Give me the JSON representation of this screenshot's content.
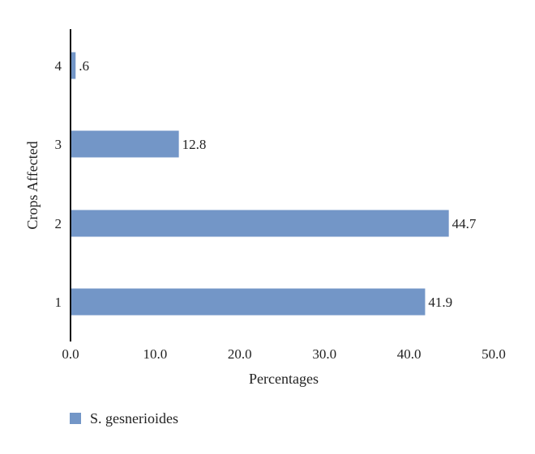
{
  "chart_data": {
    "type": "bar",
    "orientation": "horizontal",
    "categories": [
      "1",
      "2",
      "3",
      "4"
    ],
    "series": [
      {
        "name": "S. gesnerioides",
        "values": [
          41.9,
          44.7,
          12.8,
          0.6
        ],
        "value_labels": [
          "41.9",
          "44.7",
          "12.8",
          ".6"
        ],
        "color": "#7396c7"
      }
    ],
    "xlabel": "Percentages",
    "ylabel": "Crops Affected",
    "xlim": [
      0,
      50
    ],
    "xticks": [
      "0.0",
      "10.0",
      "20.0",
      "30.0",
      "40.0",
      "50.0"
    ],
    "grid": false,
    "legend_position": "bottom-left"
  }
}
